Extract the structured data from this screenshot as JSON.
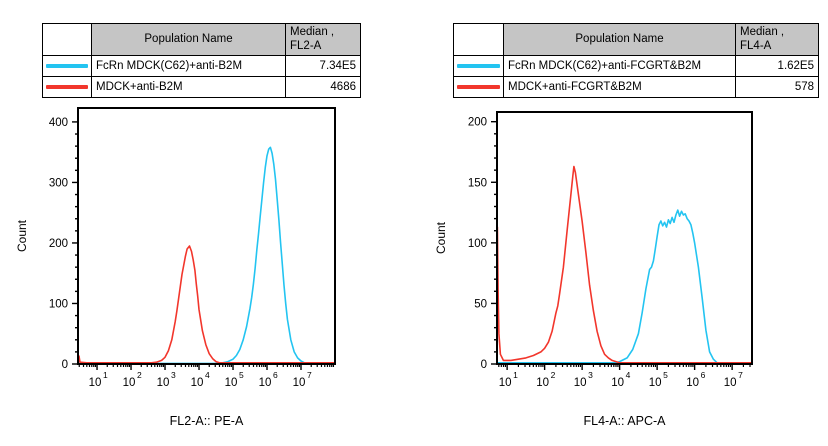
{
  "panels": [
    {
      "table": {
        "headers": {
          "population": "Population Name",
          "median_line1": "Median ,",
          "median_line2": "FL2-A"
        },
        "rows": [
          {
            "swatch_color": "#23c4f1",
            "name": "FcRn MDCK(C62)+anti-B2M",
            "median": "7.34E5"
          },
          {
            "swatch_color": "#f2362c",
            "name": "MDCK+anti-B2M",
            "median": "4686"
          }
        ]
      }
    },
    {
      "table": {
        "headers": {
          "population": "Population Name",
          "median_line1": "Median ,",
          "median_line2": "FL4-A"
        },
        "rows": [
          {
            "swatch_color": "#23c4f1",
            "name": "FcRn MDCK(C62)+anti-FCGRT&B2M",
            "median": "1.62E5"
          },
          {
            "swatch_color": "#f2362c",
            "name": "MDCK+anti-FCGRT&B2M",
            "median": "578"
          }
        ]
      }
    }
  ],
  "chart_data": [
    {
      "type": "line",
      "subtype": "flow-cytometry-histogram",
      "xlabel": "FL2-A:: PE-A",
      "ylabel": "Count",
      "x_scale": "log10",
      "xlim_exp": [
        0.44,
        8.0
      ],
      "ylim": [
        0,
        423
      ],
      "yticks_major": [
        0,
        100,
        200,
        300,
        400
      ],
      "ytick_minor_step": 20,
      "xticks_exp": [
        1,
        2,
        3,
        4,
        5,
        6,
        7
      ],
      "grid": false,
      "legend_position": "table-above",
      "series": [
        {
          "name": "FcRn MDCK(C62)+anti-B2M",
          "color": "#23c4f1",
          "median": "7.34E5",
          "points": [
            [
              0.44,
              1
            ],
            [
              1.0,
              1
            ],
            [
              2.0,
              1
            ],
            [
              3.0,
              1
            ],
            [
              4.0,
              1
            ],
            [
              4.5,
              1
            ],
            [
              4.7,
              2
            ],
            [
              4.85,
              4
            ],
            [
              5.0,
              8
            ],
            [
              5.1,
              14
            ],
            [
              5.2,
              24
            ],
            [
              5.3,
              40
            ],
            [
              5.4,
              62
            ],
            [
              5.5,
              92
            ],
            [
              5.55,
              110
            ],
            [
              5.6,
              132
            ],
            [
              5.65,
              158
            ],
            [
              5.7,
              188
            ],
            [
              5.75,
              215
            ],
            [
              5.8,
              244
            ],
            [
              5.85,
              272
            ],
            [
              5.9,
              300
            ],
            [
              5.95,
              325
            ],
            [
              6.0,
              344
            ],
            [
              6.05,
              355
            ],
            [
              6.1,
              358
            ],
            [
              6.15,
              348
            ],
            [
              6.2,
              330
            ],
            [
              6.25,
              305
            ],
            [
              6.3,
              272
            ],
            [
              6.35,
              238
            ],
            [
              6.4,
              200
            ],
            [
              6.45,
              165
            ],
            [
              6.5,
              130
            ],
            [
              6.55,
              100
            ],
            [
              6.6,
              74
            ],
            [
              6.7,
              40
            ],
            [
              6.8,
              20
            ],
            [
              6.9,
              10
            ],
            [
              7.0,
              5
            ],
            [
              7.1,
              2
            ],
            [
              7.3,
              1
            ],
            [
              7.6,
              1
            ],
            [
              8.0,
              1
            ]
          ]
        },
        {
          "name": "MDCK+anti-B2M",
          "color": "#f2362c",
          "median": "4686",
          "points": [
            [
              0.44,
              0
            ],
            [
              0.47,
              13
            ],
            [
              0.5,
              3
            ],
            [
              0.7,
              2
            ],
            [
              1.2,
              2
            ],
            [
              1.8,
              2
            ],
            [
              2.3,
              2
            ],
            [
              2.6,
              2
            ],
            [
              2.75,
              3
            ],
            [
              2.9,
              6
            ],
            [
              3.0,
              11
            ],
            [
              3.1,
              22
            ],
            [
              3.2,
              40
            ],
            [
              3.3,
              70
            ],
            [
              3.35,
              88
            ],
            [
              3.4,
              108
            ],
            [
              3.45,
              128
            ],
            [
              3.5,
              148
            ],
            [
              3.55,
              163
            ],
            [
              3.6,
              178
            ],
            [
              3.65,
              190
            ],
            [
              3.72,
              195
            ],
            [
              3.78,
              186
            ],
            [
              3.83,
              172
            ],
            [
              3.88,
              155
            ],
            [
              3.92,
              132
            ],
            [
              3.96,
              112
            ],
            [
              4.0,
              90
            ],
            [
              4.1,
              55
            ],
            [
              4.2,
              32
            ],
            [
              4.3,
              17
            ],
            [
              4.4,
              9
            ],
            [
              4.5,
              4
            ],
            [
              4.6,
              2
            ],
            [
              5.0,
              2
            ],
            [
              5.5,
              2
            ],
            [
              6.0,
              2
            ],
            [
              6.5,
              2
            ],
            [
              7.0,
              2
            ],
            [
              7.5,
              2
            ],
            [
              8.0,
              2
            ]
          ]
        }
      ]
    },
    {
      "type": "line",
      "subtype": "flow-cytometry-histogram",
      "xlabel": "FL4-A:: APC-A",
      "ylabel": "Count",
      "x_scale": "log10",
      "xlim_exp": [
        0.73,
        7.53
      ],
      "ylim": [
        0,
        208
      ],
      "yticks_major": [
        0,
        50,
        100,
        150,
        200
      ],
      "ytick_minor_step": 10,
      "xticks_exp": [
        1,
        2,
        3,
        4,
        5,
        6,
        7
      ],
      "grid": false,
      "legend_position": "table-above",
      "series": [
        {
          "name": "FcRn MDCK(C62)+anti-FCGRT&B2M",
          "color": "#23c4f1",
          "median": "1.62E5",
          "points": [
            [
              0.73,
              1
            ],
            [
              1.5,
              1
            ],
            [
              2.5,
              1
            ],
            [
              3.5,
              1
            ],
            [
              3.9,
              1
            ],
            [
              4.0,
              2
            ],
            [
              4.2,
              5
            ],
            [
              4.35,
              12
            ],
            [
              4.5,
              25
            ],
            [
              4.6,
              42
            ],
            [
              4.7,
              62
            ],
            [
              4.8,
              78
            ],
            [
              4.85,
              80
            ],
            [
              4.9,
              85
            ],
            [
              4.95,
              95
            ],
            [
              5.0,
              105
            ],
            [
              5.05,
              115
            ],
            [
              5.1,
              118
            ],
            [
              5.15,
              114
            ],
            [
              5.2,
              117
            ],
            [
              5.25,
              113
            ],
            [
              5.3,
              119
            ],
            [
              5.35,
              116
            ],
            [
              5.4,
              121
            ],
            [
              5.45,
              117
            ],
            [
              5.5,
              123
            ],
            [
              5.55,
              127
            ],
            [
              5.6,
              122
            ],
            [
              5.65,
              126
            ],
            [
              5.7,
              123
            ],
            [
              5.75,
              124
            ],
            [
              5.8,
              120
            ],
            [
              5.85,
              118
            ],
            [
              5.9,
              115
            ],
            [
              5.95,
              108
            ],
            [
              6.0,
              100
            ],
            [
              6.1,
              80
            ],
            [
              6.2,
              55
            ],
            [
              6.3,
              28
            ],
            [
              6.4,
              10
            ],
            [
              6.5,
              4
            ],
            [
              6.6,
              1
            ],
            [
              7.0,
              1
            ],
            [
              7.53,
              1
            ]
          ]
        },
        {
          "name": "MDCK+anti-FCGRT&B2M",
          "color": "#f2362c",
          "median": "578",
          "points": [
            [
              0.73,
              0
            ],
            [
              0.74,
              113
            ],
            [
              0.76,
              60
            ],
            [
              0.78,
              25
            ],
            [
              0.82,
              8
            ],
            [
              0.9,
              3
            ],
            [
              1.1,
              3
            ],
            [
              1.3,
              4
            ],
            [
              1.5,
              5
            ],
            [
              1.7,
              7
            ],
            [
              1.9,
              10
            ],
            [
              2.0,
              13
            ],
            [
              2.1,
              18
            ],
            [
              2.2,
              27
            ],
            [
              2.3,
              42
            ],
            [
              2.35,
              48
            ],
            [
              2.4,
              58
            ],
            [
              2.5,
              80
            ],
            [
              2.6,
              110
            ],
            [
              2.65,
              125
            ],
            [
              2.7,
              140
            ],
            [
              2.75,
              155
            ],
            [
              2.78,
              163
            ],
            [
              2.82,
              158
            ],
            [
              2.9,
              140
            ],
            [
              3.0,
              118
            ],
            [
              3.1,
              92
            ],
            [
              3.2,
              65
            ],
            [
              3.3,
              44
            ],
            [
              3.4,
              27
            ],
            [
              3.5,
              15
            ],
            [
              3.6,
              8
            ],
            [
              3.7,
              5
            ],
            [
              3.8,
              3
            ],
            [
              3.9,
              2
            ],
            [
              4.0,
              1
            ],
            [
              4.5,
              1
            ],
            [
              5.0,
              1
            ],
            [
              5.5,
              1
            ],
            [
              6.0,
              1
            ],
            [
              6.5,
              1
            ],
            [
              7.0,
              1
            ],
            [
              7.53,
              1
            ]
          ]
        }
      ]
    }
  ]
}
